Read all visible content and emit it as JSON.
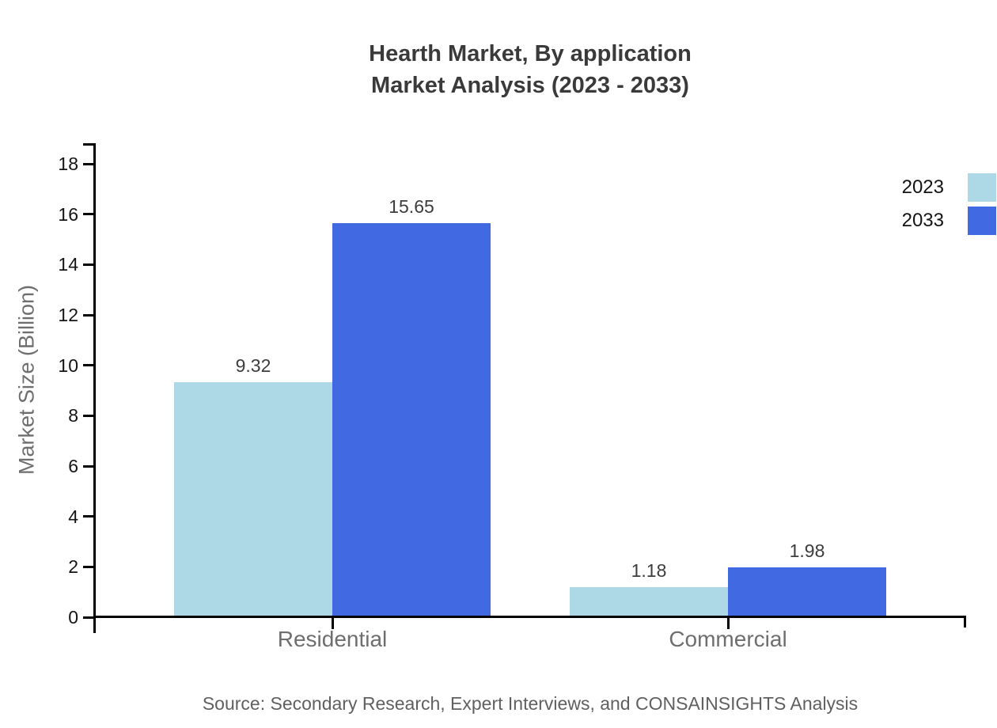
{
  "chart": {
    "title_line1": "Hearth Market, By application",
    "title_line2": "Market Analysis (2023 - 2033)"
  },
  "chart_data": {
    "type": "bar",
    "title": "Hearth Market, By application Market Analysis (2023 - 2033)",
    "categories": [
      "Residential",
      "Commercial"
    ],
    "series": [
      {
        "name": "2023",
        "color": "#ADD8E6",
        "values": [
          9.32,
          1.18
        ]
      },
      {
        "name": "2033",
        "color": "#4169E1",
        "values": [
          15.65,
          1.98
        ]
      }
    ],
    "data_labels": [
      "9.32",
      "15.65",
      "1.18",
      "1.98"
    ],
    "xlabel": "",
    "ylabel": "Market Size (Billion)",
    "ylim": [
      0,
      18
    ],
    "ytick_labels": [
      "0",
      "2",
      "4",
      "6",
      "8",
      "10",
      "12",
      "14",
      "16",
      "18"
    ],
    "ytick_step": 2,
    "grid": false,
    "legend_position": "top-right"
  },
  "source": {
    "text": "Source: Secondary Research, Expert Interviews, and CONSAINSIGHTS Analysis"
  },
  "colors": {
    "series_2023": "#ADD8E6",
    "series_2033": "#4169E1",
    "axis": "#000000",
    "tick_label": "#141414",
    "value_label": "#3d3d3d",
    "category_label": "#6e6e6e",
    "axis_title": "#6e6e6e",
    "title": "#3a3a3a",
    "source_text": "#606060",
    "background": "#ffffff"
  }
}
